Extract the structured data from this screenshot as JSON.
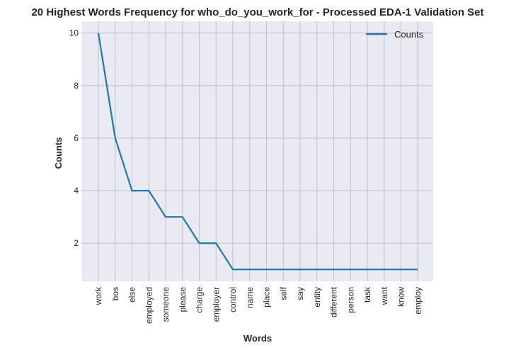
{
  "chart_data": {
    "type": "line",
    "title": "20 Highest Words Frequency for who_do_you_work_for - Processed EDA-1 Validation Set",
    "xlabel": "Words",
    "ylabel": "Counts",
    "categories": [
      "work",
      "bos",
      "else",
      "employed",
      "someone",
      "please",
      "charge",
      "employer",
      "control",
      "name",
      "place",
      "self",
      "say",
      "entity",
      "different",
      "person",
      "task",
      "want",
      "know",
      "employ"
    ],
    "series": [
      {
        "name": "Counts",
        "values": [
          10,
          6,
          4,
          4,
          3,
          3,
          2,
          2,
          1,
          1,
          1,
          1,
          1,
          1,
          1,
          1,
          1,
          1,
          1,
          1
        ]
      }
    ],
    "y_ticks": [
      2,
      4,
      6,
      8,
      10
    ],
    "ylim": [
      0.55,
      10.45
    ],
    "grid": true,
    "legend_position": "top-right",
    "colors": {
      "line": "#1f77b4",
      "plot_background": "#eaeaf2",
      "grid": "#c0c0c8"
    }
  }
}
